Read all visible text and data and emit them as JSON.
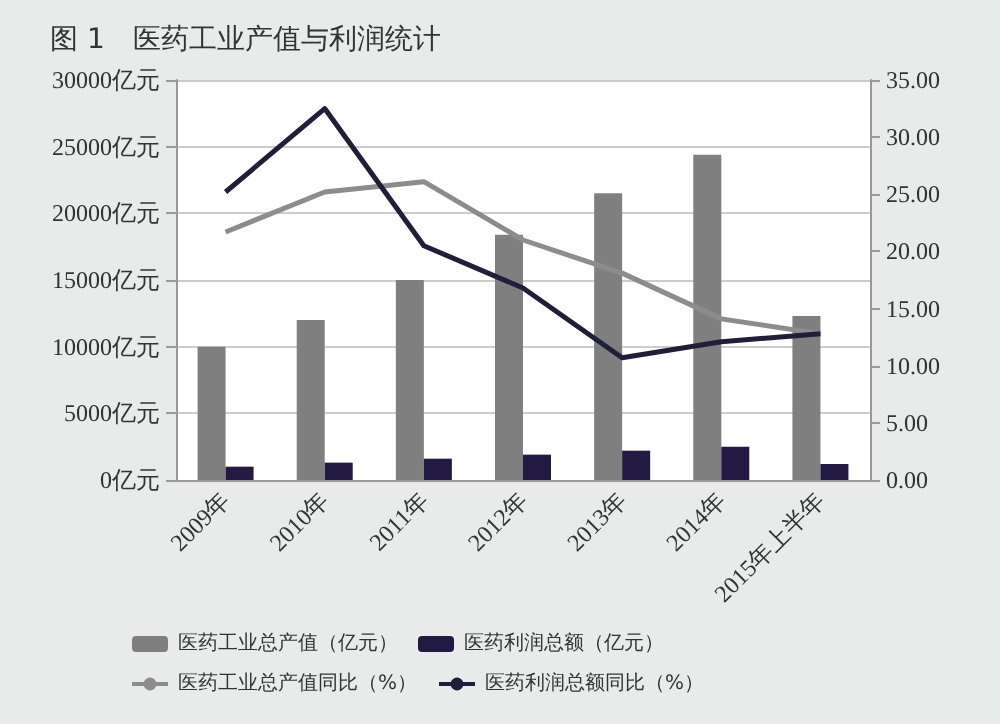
{
  "chart_data": {
    "type": "bar",
    "title": "图 1　医药工业产值与利润统计",
    "categories": [
      "2009年",
      "2010年",
      "2011年",
      "2012年",
      "2013年",
      "2014年",
      "2015年上半年"
    ],
    "series": [
      {
        "name": "医药工业总产值（亿元）",
        "color": "#7f7f7f",
        "values": [
          10000,
          12000,
          15000,
          18400,
          21500,
          24400,
          12300
        ]
      },
      {
        "name": "医药利润总额（亿元）",
        "color": "#231a44",
        "values": [
          1000,
          1300,
          1600,
          1900,
          2200,
          2500,
          1200
        ]
      },
      {
        "name": "医药工业总产值同比（%）",
        "type": "line",
        "axis": "y2",
        "color": "#8c8c8c",
        "values": [
          21.7,
          25.2,
          26.1,
          21.0,
          18.1,
          14.1,
          12.8
        ]
      },
      {
        "name": "医药利润总额同比（%）",
        "type": "line",
        "axis": "y2",
        "color": "#1f1f3a",
        "values": [
          25.2,
          32.5,
          20.5,
          16.8,
          10.7,
          12.1,
          12.8
        ]
      }
    ],
    "ylim": [
      0,
      30000
    ],
    "yticks": [
      {
        "value": 0,
        "label": "0亿元"
      },
      {
        "value": 5000,
        "label": "5000亿元"
      },
      {
        "value": 10000,
        "label": "10000亿元"
      },
      {
        "value": 15000,
        "label": "15000亿元"
      },
      {
        "value": 20000,
        "label": "20000亿元"
      },
      {
        "value": 25000,
        "label": "25000亿元"
      },
      {
        "value": 30000,
        "label": "30000亿元"
      }
    ],
    "y2lim": [
      0,
      35
    ],
    "y2ticks": [
      {
        "value": 0,
        "label": "0.00"
      },
      {
        "value": 5,
        "label": "5.00"
      },
      {
        "value": 10,
        "label": "10.00"
      },
      {
        "value": 15,
        "label": "15.00"
      },
      {
        "value": 20,
        "label": "20.00"
      },
      {
        "value": 25,
        "label": "25.00"
      },
      {
        "value": 30,
        "label": "30.00"
      },
      {
        "value": 35,
        "label": "35.00"
      }
    ],
    "grid": "y",
    "legend": "bottom",
    "marker": "none",
    "line_style": "solid"
  }
}
